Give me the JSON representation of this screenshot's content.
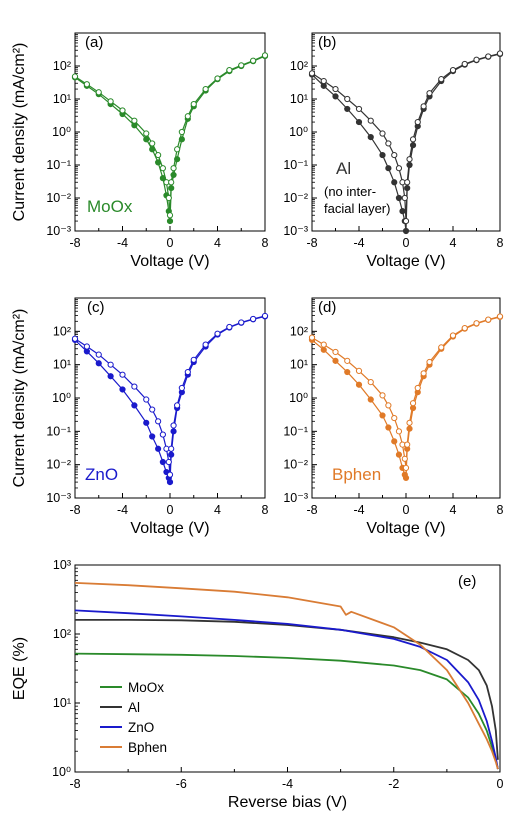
{
  "chart_data": [
    {
      "type": "scatter",
      "panel_label": "(a)",
      "annotation": "MoOx",
      "color": "#2a8a2a",
      "xlabel": "Voltage (V)",
      "ylabel": "Current density (mA/cm²)",
      "xlim": [
        -8,
        8
      ],
      "ylim": [
        0.001,
        1000
      ],
      "yscale": "log",
      "x_ticks": [
        "-8",
        "-4",
        "0",
        "4",
        "8"
      ],
      "y_ticks": [
        "10⁻³",
        "10⁻²",
        "10⁻¹",
        "10⁰",
        "10¹",
        "10²"
      ],
      "series": [
        {
          "marker": "filled",
          "x": [
            -8,
            -7,
            -6,
            -5,
            -4,
            -3,
            -2,
            -1.5,
            -1,
            -0.6,
            -0.3,
            -0.1,
            0,
            0.1,
            0.3,
            0.6,
            1,
            1.5,
            2,
            3,
            4,
            5,
            6,
            7,
            8
          ],
          "y": [
            45,
            25,
            14,
            7,
            3.5,
            1.6,
            0.6,
            0.3,
            0.12,
            0.04,
            0.012,
            0.004,
            0.002,
            0.02,
            0.05,
            0.15,
            0.6,
            2.5,
            6,
            18,
            40,
            70,
            100,
            140,
            200
          ]
        },
        {
          "marker": "open",
          "x": [
            -8,
            -7,
            -6,
            -5,
            -4,
            -3,
            -2,
            -1.5,
            -1,
            -0.6,
            -0.3,
            -0.1,
            0,
            0.1,
            0.3,
            0.6,
            1,
            1.5,
            2,
            3,
            4,
            5,
            6,
            7,
            8
          ],
          "y": [
            48,
            28,
            16,
            8.5,
            4.5,
            2.2,
            0.9,
            0.45,
            0.2,
            0.08,
            0.03,
            0.01,
            0.003,
            0.03,
            0.08,
            0.3,
            1,
            3,
            7,
            20,
            42,
            75,
            105,
            145,
            210
          ]
        }
      ]
    },
    {
      "type": "scatter",
      "panel_label": "(b)",
      "annotation": "Al",
      "annotation_sub": [
        "(no inter-",
        "facial layer)"
      ],
      "color": "#333333",
      "xlabel": "Voltage (V)",
      "ylabel": "",
      "xlim": [
        -8,
        8
      ],
      "ylim": [
        0.001,
        1000
      ],
      "yscale": "log",
      "x_ticks": [
        "-8",
        "-4",
        "0",
        "4",
        "8"
      ],
      "y_ticks": [
        "10⁻³",
        "10⁻²",
        "10⁻¹",
        "10⁰",
        "10¹",
        "10²"
      ],
      "series": [
        {
          "marker": "filled",
          "x": [
            -8,
            -7,
            -6,
            -5,
            -4,
            -3,
            -2,
            -1.5,
            -1,
            -0.6,
            -0.3,
            -0.1,
            0,
            0.1,
            0.3,
            0.6,
            1,
            1.5,
            2,
            3,
            4,
            5,
            6,
            7,
            8
          ],
          "y": [
            55,
            25,
            12,
            5,
            2,
            0.7,
            0.2,
            0.08,
            0.03,
            0.01,
            0.004,
            0.002,
            0.001,
            0.02,
            0.1,
            0.4,
            1.5,
            5,
            12,
            35,
            70,
            110,
            150,
            190,
            230
          ]
        },
        {
          "marker": "open",
          "x": [
            -8,
            -7,
            -6,
            -5,
            -4,
            -3,
            -2,
            -1.5,
            -1,
            -0.6,
            -0.3,
            -0.1,
            0,
            0.1,
            0.3,
            0.6,
            1,
            1.5,
            2,
            3,
            4,
            5,
            6,
            7,
            8
          ],
          "y": [
            60,
            35,
            20,
            10,
            5,
            2.2,
            0.9,
            0.45,
            0.2,
            0.08,
            0.03,
            0.01,
            0.002,
            0.03,
            0.15,
            0.6,
            2,
            6,
            15,
            40,
            75,
            115,
            155,
            195,
            240
          ]
        }
      ]
    },
    {
      "type": "scatter",
      "panel_label": "(c)",
      "annotation": "ZnO",
      "color": "#1a1acc",
      "xlabel": "Voltage (V)",
      "ylabel": "Current density (mA/cm²)",
      "xlim": [
        -8,
        8
      ],
      "ylim": [
        0.001,
        1000
      ],
      "yscale": "log",
      "x_ticks": [
        "-8",
        "-4",
        "0",
        "4",
        "8"
      ],
      "y_ticks": [
        "10⁻³",
        "10⁻²",
        "10⁻¹",
        "10⁰",
        "10¹",
        "10²"
      ],
      "series": [
        {
          "marker": "filled",
          "x": [
            -8,
            -7,
            -6,
            -5,
            -4,
            -3,
            -2,
            -1.5,
            -1,
            -0.6,
            -0.3,
            -0.1,
            0,
            0.1,
            0.3,
            0.6,
            1,
            1.5,
            2,
            3,
            4,
            5,
            6,
            7,
            8
          ],
          "y": [
            55,
            25,
            11,
            4.5,
            1.8,
            0.6,
            0.18,
            0.07,
            0.03,
            0.012,
            0.006,
            0.004,
            0.003,
            0.02,
            0.1,
            0.5,
            1.5,
            5,
            12,
            35,
            80,
            130,
            180,
            230,
            280
          ]
        },
        {
          "marker": "open",
          "x": [
            -8,
            -7,
            -6,
            -5,
            -4,
            -3,
            -2,
            -1.5,
            -1,
            -0.6,
            -0.3,
            -0.1,
            0,
            0.1,
            0.3,
            0.6,
            1,
            1.5,
            2,
            3,
            4,
            5,
            6,
            7,
            8
          ],
          "y": [
            60,
            35,
            20,
            10,
            5,
            2.2,
            0.9,
            0.45,
            0.2,
            0.08,
            0.03,
            0.012,
            0.005,
            0.03,
            0.15,
            0.6,
            2,
            6,
            14,
            40,
            85,
            135,
            185,
            235,
            290
          ]
        }
      ]
    },
    {
      "type": "scatter",
      "panel_label": "(d)",
      "annotation": "Bphen",
      "color": "#e07a28",
      "xlabel": "Voltage (V)",
      "ylabel": "",
      "xlim": [
        -8,
        8
      ],
      "ylim": [
        0.001,
        1000
      ],
      "yscale": "log",
      "x_ticks": [
        "-8",
        "-4",
        "0",
        "4",
        "8"
      ],
      "y_ticks": [
        "10⁻³",
        "10⁻²",
        "10⁻¹",
        "10⁰",
        "10¹",
        "10²"
      ],
      "series": [
        {
          "marker": "filled",
          "x": [
            -8,
            -7,
            -6,
            -5,
            -4,
            -3,
            -2,
            -1.5,
            -1,
            -0.6,
            -0.3,
            -0.1,
            0,
            0.1,
            0.3,
            0.6,
            1,
            1.5,
            2,
            3,
            4,
            5,
            6,
            7,
            8
          ],
          "y": [
            55,
            28,
            13,
            6,
            2.5,
            0.9,
            0.3,
            0.13,
            0.05,
            0.02,
            0.008,
            0.005,
            0.004,
            0.03,
            0.12,
            0.5,
            1.5,
            4.5,
            10,
            30,
            70,
            120,
            170,
            220,
            270
          ]
        },
        {
          "marker": "open",
          "x": [
            -8,
            -7,
            -6,
            -5,
            -4,
            -3,
            -2,
            -1.5,
            -1,
            -0.6,
            -0.3,
            -0.1,
            0,
            0.1,
            0.3,
            0.6,
            1,
            1.5,
            2,
            3,
            4,
            5,
            6,
            7,
            8
          ],
          "y": [
            65,
            40,
            24,
            13,
            6.5,
            3,
            1.2,
            0.6,
            0.25,
            0.1,
            0.04,
            0.015,
            0.008,
            0.04,
            0.18,
            0.7,
            2,
            5.5,
            12,
            33,
            75,
            125,
            175,
            225,
            280
          ]
        }
      ]
    },
    {
      "type": "line",
      "panel_label": "(e)",
      "xlabel": "Reverse bias (V)",
      "ylabel": "EQE (%)",
      "xlim": [
        -8,
        0
      ],
      "ylim": [
        1,
        1000
      ],
      "yscale": "log",
      "x_ticks": [
        "-8",
        "-6",
        "-4",
        "-2",
        "0"
      ],
      "y_ticks": [
        "10⁰",
        "10¹",
        "10²",
        "10³"
      ],
      "legend_position": "bottom-left",
      "series": [
        {
          "name": "MoOx",
          "color": "#2a8a2a",
          "x": [
            -8,
            -7,
            -6,
            -5,
            -4,
            -3,
            -2,
            -1.5,
            -1,
            -0.6,
            -0.4,
            -0.25,
            -0.15,
            -0.08,
            -0.04
          ],
          "y": [
            52,
            51,
            50,
            48,
            45,
            41,
            35,
            30,
            22,
            12,
            7,
            4,
            2.3,
            1.5,
            1.1
          ]
        },
        {
          "name": "Al",
          "color": "#333333",
          "x": [
            -8,
            -7,
            -6,
            -5,
            -4,
            -3,
            -2,
            -1.5,
            -1,
            -0.6,
            -0.4,
            -0.25,
            -0.15,
            -0.08,
            -0.04
          ],
          "y": [
            160,
            160,
            158,
            150,
            135,
            115,
            90,
            75,
            60,
            42,
            30,
            18,
            9,
            4,
            1.5
          ]
        },
        {
          "name": "ZnO",
          "color": "#1a1acc",
          "x": [
            -8,
            -7,
            -6,
            -5,
            -4,
            -3,
            -2,
            -1.5,
            -1,
            -0.6,
            -0.4,
            -0.25,
            -0.15,
            -0.08,
            -0.04
          ],
          "y": [
            220,
            200,
            180,
            160,
            140,
            115,
            85,
            65,
            42,
            20,
            11,
            5.5,
            2.8,
            1.6,
            1.1
          ]
        },
        {
          "name": "Bphen",
          "color": "#d97c35",
          "x": [
            -8,
            -7,
            -6,
            -5,
            -4,
            -3,
            -2.9,
            -2.8,
            -2,
            -1.5,
            -1,
            -0.6,
            -0.4,
            -0.25,
            -0.15,
            -0.08,
            -0.04
          ],
          "y": [
            550,
            510,
            460,
            410,
            340,
            250,
            190,
            210,
            125,
            70,
            30,
            10,
            5,
            3,
            2,
            1.4,
            1.1
          ]
        }
      ]
    }
  ]
}
